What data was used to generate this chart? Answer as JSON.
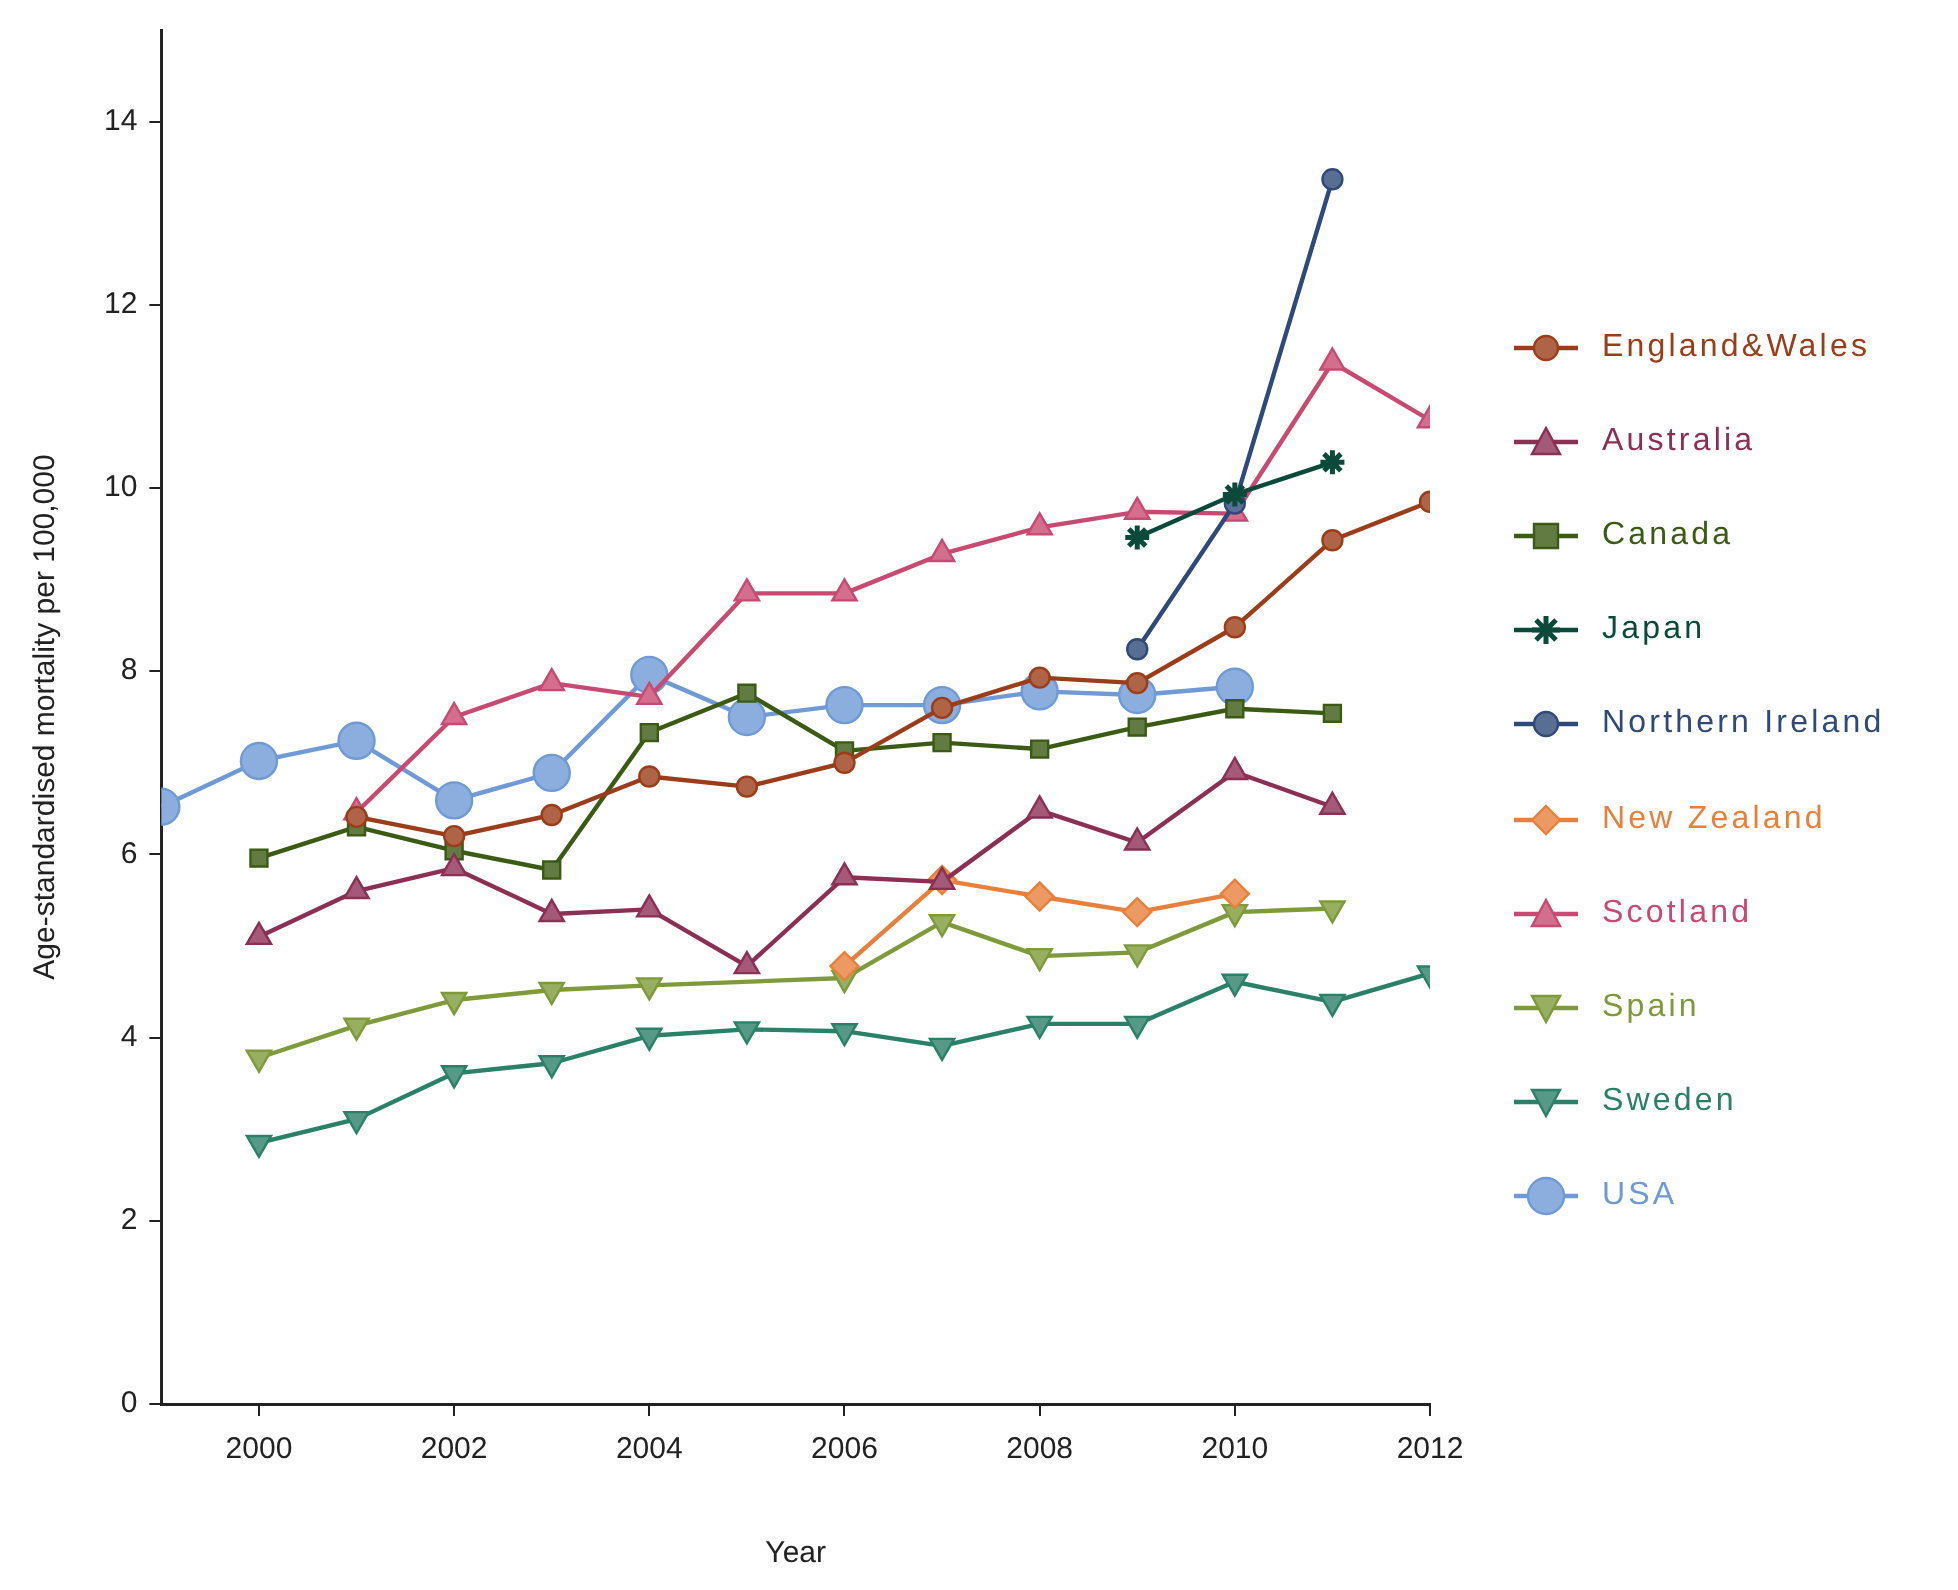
{
  "chart_data": {
    "type": "line",
    "xlabel": "Year",
    "ylabel": "Age-standardised mortality per 100,000",
    "xlim": [
      1999,
      2012
    ],
    "xticks": [
      2000,
      2002,
      2004,
      2006,
      2008,
      2010,
      2012
    ],
    "ylim": [
      0,
      15
    ],
    "yticks": [
      0,
      2,
      4,
      6,
      8,
      10,
      12,
      14
    ],
    "grid": false,
    "legend": "right",
    "line_style": "solid",
    "series": [
      {
        "name": "England&Wales",
        "color": "#9b3d1a",
        "marker": "circle",
        "x": [
          2001,
          2002,
          2003,
          2004,
          2005,
          2006,
          2007,
          2008,
          2009,
          2010,
          2011,
          2012
        ],
        "values": [
          6.41,
          6.2,
          6.43,
          6.85,
          6.74,
          7.0,
          7.6,
          7.93,
          7.87,
          8.48,
          9.43,
          9.85
        ]
      },
      {
        "name": "Australia",
        "color": "#8c2f55",
        "marker": "triangle",
        "x": [
          2000,
          2001,
          2002,
          2003,
          2004,
          2005,
          2006,
          2007,
          2008,
          2009,
          2010,
          2011
        ],
        "values": [
          5.1,
          5.6,
          5.85,
          5.35,
          5.4,
          4.78,
          5.75,
          5.7,
          6.48,
          6.13,
          6.9,
          6.52
        ]
      },
      {
        "name": "Canada",
        "color": "#3b5a14",
        "marker": "square",
        "x": [
          2000,
          2001,
          2002,
          2003,
          2004,
          2005,
          2006,
          2007,
          2008,
          2009,
          2010,
          2011
        ],
        "values": [
          5.96,
          6.3,
          6.04,
          5.83,
          7.33,
          7.76,
          7.13,
          7.22,
          7.15,
          7.39,
          7.59,
          7.54
        ]
      },
      {
        "name": "Japan",
        "color": "#0b4a3a",
        "marker": "cross",
        "x": [
          2009,
          2010,
          2011
        ],
        "values": [
          9.46,
          9.93,
          10.28
        ]
      },
      {
        "name": "Northern Ireland",
        "color": "#2f4a78",
        "marker": "circle",
        "x": [
          2009,
          2010,
          2011
        ],
        "values": [
          8.24,
          9.83,
          13.37
        ]
      },
      {
        "name": "New Zealand",
        "color": "#e8803c",
        "marker": "diamond",
        "x": [
          2006,
          2007,
          2008,
          2009,
          2010
        ],
        "values": [
          4.78,
          5.72,
          5.54,
          5.37,
          5.57
        ]
      },
      {
        "name": "Scotland",
        "color": "#c84a72",
        "marker": "triangle",
        "x": [
          2001,
          2002,
          2003,
          2004,
          2005,
          2006,
          2007,
          2008,
          2009,
          2010,
          2011,
          2012
        ],
        "values": [
          6.46,
          7.5,
          7.87,
          7.72,
          8.85,
          8.85,
          9.28,
          9.57,
          9.74,
          9.72,
          11.37,
          10.74
        ]
      },
      {
        "name": "Spain",
        "color": "#7e9a3a",
        "marker": "triangle-down",
        "x": [
          2000,
          2001,
          2002,
          2003,
          2004,
          2006,
          2007,
          2008,
          2009,
          2010,
          2011
        ],
        "values": [
          3.78,
          4.13,
          4.41,
          4.52,
          4.57,
          4.65,
          5.26,
          4.89,
          4.93,
          5.37,
          5.41
        ]
      },
      {
        "name": "Sweden",
        "color": "#2a8068",
        "marker": "triangle-down",
        "x": [
          2000,
          2001,
          2002,
          2003,
          2004,
          2005,
          2006,
          2007,
          2008,
          2009,
          2010,
          2011,
          2012
        ],
        "values": [
          2.85,
          3.11,
          3.61,
          3.72,
          4.02,
          4.09,
          4.07,
          3.91,
          4.15,
          4.15,
          4.61,
          4.39,
          4.7
        ]
      },
      {
        "name": "USA",
        "color": "#6f9ad6",
        "marker": "circle",
        "x": [
          1999,
          2000,
          2001,
          2002,
          2003,
          2004,
          2005,
          2006,
          2007,
          2008,
          2009,
          2010
        ],
        "values": [
          6.52,
          7.02,
          7.24,
          6.59,
          6.89,
          7.96,
          7.5,
          7.63,
          7.63,
          7.78,
          7.74,
          7.83
        ]
      }
    ]
  }
}
